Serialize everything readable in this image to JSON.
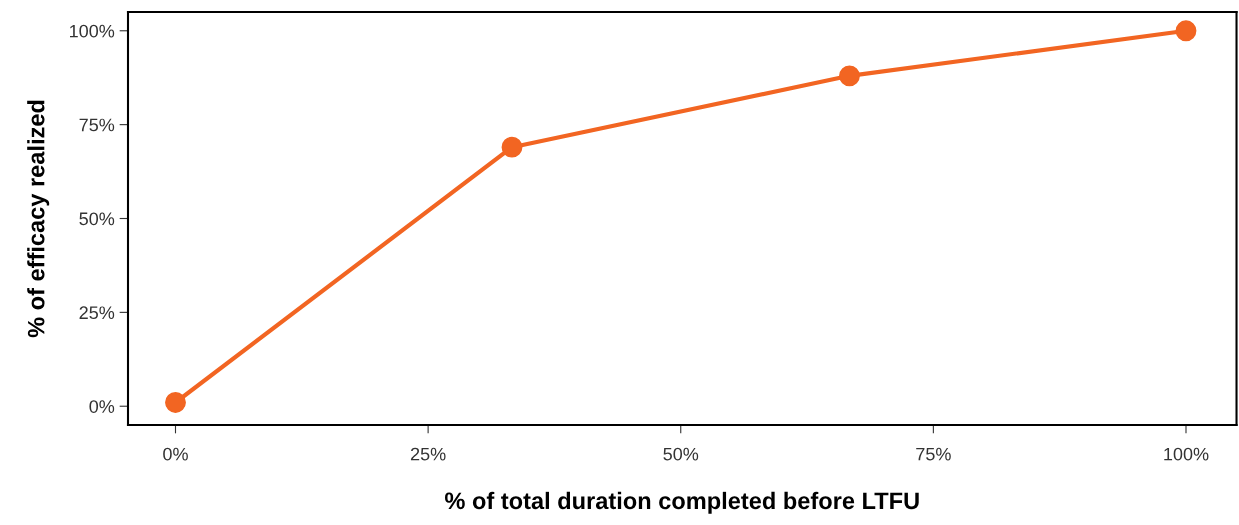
{
  "chart_data": {
    "type": "line",
    "xlabel": "% of total duration completed before LTFU",
    "ylabel": "% of efficacy realized",
    "x": [
      0,
      33.3,
      66.7,
      100
    ],
    "series": [
      {
        "color": "#f26522",
        "values": [
          1,
          69,
          88,
          100
        ]
      }
    ],
    "xlim": [
      -4.7,
      105
    ],
    "ylim": [
      -5,
      105
    ],
    "xticks": [
      {
        "value": 0,
        "label": "0%"
      },
      {
        "value": 25,
        "label": "25%"
      },
      {
        "value": 50,
        "label": "50%"
      },
      {
        "value": 75,
        "label": "75%"
      },
      {
        "value": 100,
        "label": "100%"
      }
    ],
    "yticks": [
      {
        "value": 0,
        "label": "0%"
      },
      {
        "value": 25,
        "label": "25%"
      },
      {
        "value": 50,
        "label": "50%"
      },
      {
        "value": 75,
        "label": "75%"
      },
      {
        "value": 100,
        "label": "100%"
      }
    ],
    "grid": false,
    "legend": false,
    "marker": "circle",
    "line_style": "solid"
  }
}
